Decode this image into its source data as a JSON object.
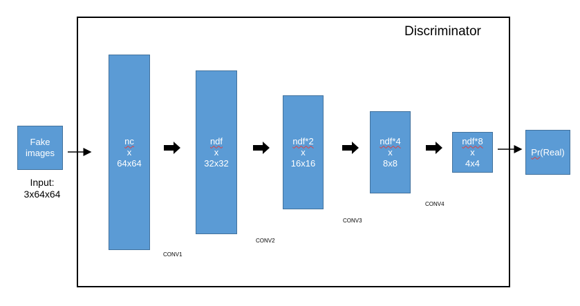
{
  "title": "Discriminator",
  "input_box": {
    "line1": "Fake",
    "line2": "images"
  },
  "input_label": {
    "line1": "Input:",
    "line2": "3x64x64"
  },
  "layers": [
    {
      "top": "nc",
      "mid": "x",
      "bottom": "64x64",
      "conv": "CONV1"
    },
    {
      "top": "ndf",
      "mid": "x",
      "bottom": "32x32",
      "conv": "CONV2"
    },
    {
      "top": "ndf*2",
      "mid": "x",
      "bottom": "16x16",
      "conv": "CONV3"
    },
    {
      "top": "ndf*4",
      "mid": "x",
      "bottom": "8x8",
      "conv": "CONV4"
    },
    {
      "top": "ndf*8",
      "mid": "x",
      "bottom": "4x4"
    }
  ],
  "output_box": {
    "prefix": "Pr",
    "suffix": "(Real)"
  },
  "colors": {
    "box_fill": "#5b9bd5",
    "box_border": "#41719c",
    "frame": "#000000"
  }
}
